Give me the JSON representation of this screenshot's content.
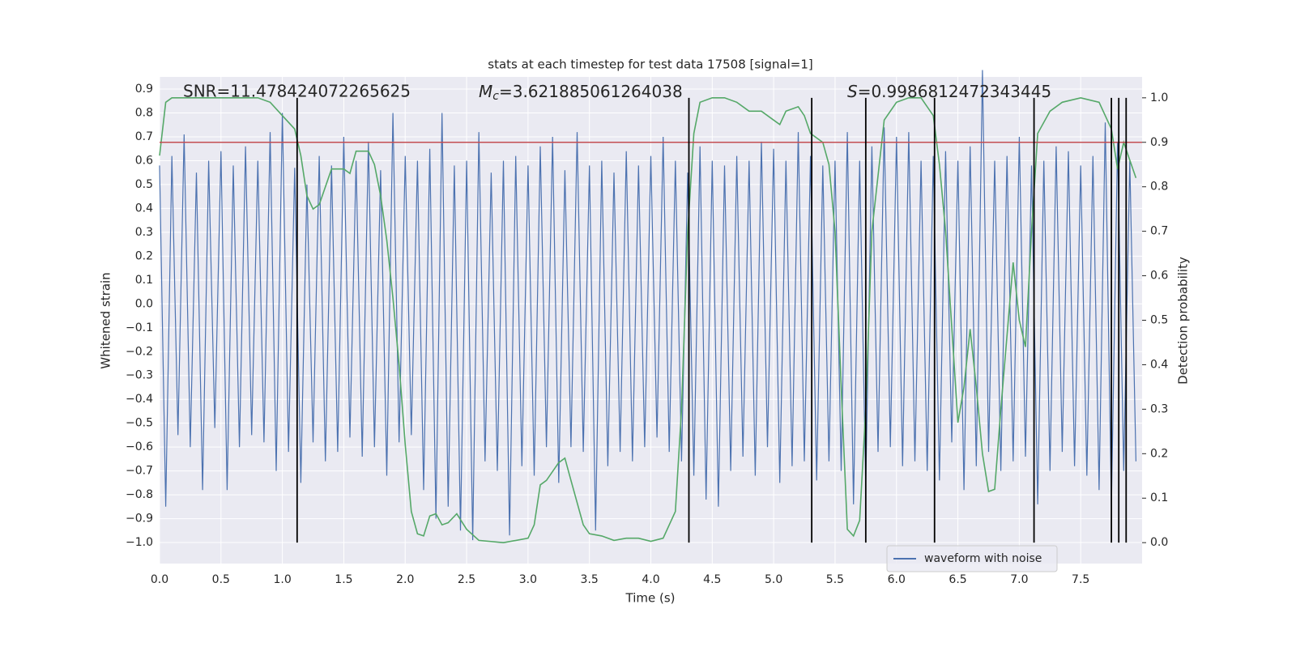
{
  "chart_data": {
    "type": "line",
    "title": "stats at each timestep for test data 17508 [signal=1]",
    "x_label": "Time (s)",
    "y_label": "Whitened strain",
    "y2_label": "Detection probability",
    "annotations": [
      {
        "text": "SNR=11.478424072265625"
      },
      {
        "symbol": "M",
        "subscript": "c",
        "text": "=3.621885061264038"
      },
      {
        "symbol": "S",
        "text": "=0.9986812472343445"
      }
    ],
    "xlim": [
      0,
      8
    ],
    "ylim": [
      -1.088,
      0.951
    ],
    "y2lim": [
      -0.047,
      1.047
    ],
    "xticks": [
      {
        "value": 0,
        "label": "0.0"
      },
      0.5,
      {
        "value": 1,
        "label": "1.0"
      },
      1.5,
      {
        "value": 2,
        "label": "2.0"
      },
      2.5,
      {
        "value": 3,
        "label": "3.0"
      },
      3.5,
      {
        "value": 4,
        "label": "4.0"
      },
      4.5,
      {
        "value": 5,
        "label": "5.0"
      },
      5.5,
      {
        "value": 6,
        "label": "6.0"
      },
      6.5,
      {
        "value": 7,
        "label": "7.0"
      },
      7.5
    ],
    "yticks": [
      {
        "value": -1,
        "label": "−1.0"
      },
      {
        "value": -0.9,
        "label": "−0.9"
      },
      {
        "value": -0.8,
        "label": "−0.8"
      },
      {
        "value": -0.7,
        "label": "−0.7"
      },
      {
        "value": -0.6,
        "label": "−0.6"
      },
      {
        "value": -0.5,
        "label": "−0.5"
      },
      {
        "value": -0.4,
        "label": "−0.4"
      },
      {
        "value": -0.3,
        "label": "−0.3"
      },
      {
        "value": -0.2,
        "label": "−0.2"
      },
      {
        "value": -0.1,
        "label": "−0.1"
      },
      {
        "value": 0,
        "label": "0.0"
      },
      0.1,
      0.2,
      0.3,
      0.4,
      0.5,
      0.6,
      0.7,
      0.8,
      0.9
    ],
    "y2ticks": [
      {
        "value": 0,
        "label": "0.0"
      },
      0.1,
      0.2,
      0.3,
      0.4,
      0.5,
      0.6,
      0.7,
      0.8,
      0.9,
      {
        "value": 1,
        "label": "1.0"
      }
    ],
    "grid": true,
    "legend": "lower right",
    "series": [
      {
        "name": "waveform with noise",
        "color": "#4c72b0",
        "x": [
          0,
          0.05,
          0.1,
          0.15,
          0.2,
          0.25,
          0.3,
          0.35,
          0.4,
          0.45,
          0.5,
          0.55,
          0.6,
          0.65,
          0.7,
          0.75,
          0.8,
          0.85,
          0.9,
          0.95,
          1,
          1.05,
          1.1,
          1.15,
          1.2,
          1.25,
          1.3,
          1.35,
          1.4,
          1.45,
          1.5,
          1.55,
          1.6,
          1.65,
          1.7,
          1.75,
          1.8,
          1.85,
          1.9,
          1.95,
          2,
          2.05,
          2.1,
          2.15,
          2.2,
          2.25,
          2.3,
          2.35,
          2.4,
          2.45,
          2.5,
          2.55,
          2.6,
          2.65,
          2.7,
          2.75,
          2.8,
          2.85,
          2.9,
          2.95,
          3,
          3.05,
          3.1,
          3.15,
          3.2,
          3.25,
          3.3,
          3.35,
          3.4,
          3.45,
          3.5,
          3.55,
          3.6,
          3.65,
          3.7,
          3.75,
          3.8,
          3.85,
          3.9,
          3.95,
          4,
          4.05,
          4.1,
          4.15,
          4.2,
          4.25,
          4.3,
          4.35,
          4.4,
          4.45,
          4.5,
          4.55,
          4.6,
          4.65,
          4.7,
          4.75,
          4.8,
          4.85,
          4.9,
          4.95,
          5,
          5.05,
          5.1,
          5.15,
          5.2,
          5.25,
          5.3,
          5.35,
          5.4,
          5.45,
          5.5,
          5.55,
          5.6,
          5.65,
          5.7,
          5.75,
          5.8,
          5.85,
          5.9,
          5.95,
          6,
          6.05,
          6.1,
          6.15,
          6.2,
          6.25,
          6.3,
          6.35,
          6.4,
          6.45,
          6.5,
          6.55,
          6.6,
          6.65,
          6.7,
          6.75,
          6.8,
          6.85,
          6.9,
          6.95,
          7,
          7.05,
          7.1,
          7.15,
          7.2,
          7.25,
          7.3,
          7.35,
          7.4,
          7.45,
          7.5,
          7.55,
          7.6,
          7.65,
          7.7,
          7.75,
          7.8,
          7.85,
          7.9,
          7.95
        ],
        "values": [
          0.58,
          -0.85,
          0.62,
          -0.55,
          0.71,
          -0.6,
          0.55,
          -0.78,
          0.6,
          -0.52,
          0.64,
          -0.78,
          0.58,
          -0.6,
          0.66,
          -0.55,
          0.6,
          -0.58,
          0.72,
          -0.7,
          0.8,
          -0.62,
          0.57,
          -0.75,
          0.5,
          -0.58,
          0.62,
          -0.66,
          0.58,
          -0.62,
          0.7,
          -0.56,
          0.6,
          -0.64,
          0.68,
          -0.6,
          0.56,
          -0.72,
          0.8,
          -0.58,
          0.62,
          -0.55,
          0.6,
          -0.78,
          0.65,
          -0.9,
          0.8,
          -0.85,
          0.58,
          -0.95,
          0.6,
          -0.99,
          0.72,
          -0.66,
          0.55,
          -0.7,
          0.6,
          -0.97,
          0.62,
          -0.68,
          0.58,
          -0.72,
          0.66,
          -0.6,
          0.7,
          -0.75,
          0.56,
          -0.6,
          0.72,
          -0.62,
          0.58,
          -0.95,
          0.6,
          -0.68,
          0.55,
          -0.62,
          0.64,
          -0.66,
          0.58,
          -0.6,
          0.62,
          -0.56,
          0.7,
          -0.62,
          0.6,
          -0.66,
          0.55,
          -0.72,
          0.66,
          -0.82,
          0.6,
          -0.85,
          0.58,
          -0.7,
          0.62,
          -0.64,
          0.6,
          -0.72,
          0.68,
          -0.6,
          0.65,
          -0.75,
          0.6,
          -0.68,
          0.72,
          -0.66,
          0.62,
          -0.74,
          0.58,
          -0.66,
          0.6,
          -0.7,
          0.72,
          -0.84,
          0.6,
          -0.76,
          0.66,
          -0.62,
          0.74,
          -0.6,
          0.7,
          -0.68,
          0.72,
          -0.66,
          0.6,
          -0.7,
          0.62,
          -0.74,
          0.64,
          -0.58,
          0.6,
          -0.78,
          0.66,
          -0.68,
          0.98,
          -0.62,
          0.6,
          -0.7,
          0.62,
          -0.66,
          0.7,
          -0.64,
          0.58,
          -0.84,
          0.6,
          -0.7,
          0.66,
          -0.62,
          0.64,
          -0.68,
          0.58,
          -0.72,
          0.62,
          -0.78,
          0.76,
          -0.85,
          0.68,
          -0.7,
          0.6,
          -0.66
        ]
      },
      {
        "color": "#55a868",
        "axis": "y2",
        "x": [
          0,
          0.05,
          0.1,
          0.3,
          0.6,
          0.8,
          0.9,
          1,
          1.1,
          1.15,
          1.2,
          1.25,
          1.3,
          1.35,
          1.4,
          1.5,
          1.55,
          1.6,
          1.7,
          1.75,
          1.8,
          1.85,
          1.9,
          1.95,
          2,
          2.05,
          2.1,
          2.15,
          2.2,
          2.25,
          2.3,
          2.35,
          2.42,
          2.5,
          2.6,
          2.8,
          3,
          3.05,
          3.1,
          3.15,
          3.25,
          3.3,
          3.35,
          3.45,
          3.5,
          3.6,
          3.7,
          3.8,
          3.9,
          4,
          4.1,
          4.2,
          4.25,
          4.3,
          4.35,
          4.4,
          4.5,
          4.6,
          4.7,
          4.8,
          4.9,
          5,
          5.05,
          5.1,
          5.2,
          5.25,
          5.3,
          5.4,
          5.45,
          5.5,
          5.55,
          5.6,
          5.65,
          5.7,
          5.75,
          5.8,
          5.9,
          6,
          6.1,
          6.2,
          6.3,
          6.35,
          6.4,
          6.5,
          6.55,
          6.6,
          6.65,
          6.7,
          6.75,
          6.8,
          6.85,
          6.95,
          7,
          7.05,
          7.1,
          7.15,
          7.25,
          7.35,
          7.5,
          7.65,
          7.75,
          7.8,
          7.85,
          7.9,
          7.95
        ],
        "values": [
          0.87,
          0.99,
          1,
          1,
          1,
          1,
          0.99,
          0.96,
          0.93,
          0.87,
          0.78,
          0.75,
          0.76,
          0.8,
          0.84,
          0.84,
          0.83,
          0.88,
          0.88,
          0.85,
          0.78,
          0.68,
          0.55,
          0.4,
          0.22,
          0.07,
          0.02,
          0.015,
          0.06,
          0.065,
          0.04,
          0.045,
          0.065,
          0.03,
          0.005,
          0,
          0.01,
          0.04,
          0.13,
          0.14,
          0.18,
          0.19,
          0.14,
          0.04,
          0.02,
          0.015,
          0.005,
          0.01,
          0.01,
          0.003,
          0.01,
          0.07,
          0.3,
          0.7,
          0.92,
          0.99,
          1,
          1,
          0.99,
          0.97,
          0.97,
          0.95,
          0.94,
          0.97,
          0.98,
          0.96,
          0.92,
          0.9,
          0.85,
          0.7,
          0.35,
          0.03,
          0.015,
          0.05,
          0.3,
          0.7,
          0.95,
          0.99,
          1,
          1,
          0.96,
          0.85,
          0.7,
          0.27,
          0.35,
          0.48,
          0.35,
          0.2,
          0.115,
          0.12,
          0.3,
          0.63,
          0.5,
          0.44,
          0.7,
          0.92,
          0.97,
          0.99,
          1,
          0.99,
          0.93,
          0.84,
          0.9,
          0.86,
          0.82
        ]
      }
    ],
    "threshold": {
      "value": 0.9,
      "axis": "y2",
      "color": "#c44e52"
    },
    "vlines": {
      "x": [
        1.12,
        4.31,
        5.31,
        5.75,
        6.31,
        7.12,
        7.75,
        7.81,
        7.87
      ],
      "from": 0,
      "to": 1,
      "axis": "y2",
      "color": "#000000"
    }
  }
}
